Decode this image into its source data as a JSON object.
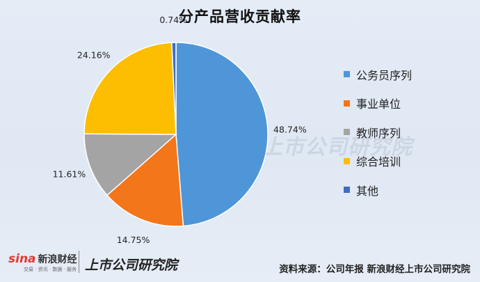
{
  "title": "分产品营收贡献率",
  "chart_data": {
    "type": "pie",
    "title": "分产品营收贡献率",
    "slices": [
      {
        "label": "公务员序列",
        "value": 48.74,
        "value_label": "48.74%",
        "color": "#4e96d8"
      },
      {
        "label": "事业单位",
        "value": 14.75,
        "value_label": "14.75%",
        "color": "#f3761b"
      },
      {
        "label": "教师序列",
        "value": 11.61,
        "value_label": "11.61%",
        "color": "#a4a4a4"
      },
      {
        "label": "综合培训",
        "value": 24.16,
        "value_label": "24.16%",
        "color": "#fdbd00"
      },
      {
        "label": "其他",
        "value": 0.74,
        "value_label": "0.74%",
        "color": "#3d6cc4"
      }
    ],
    "legend_position": "right",
    "start_angle": "top",
    "direction": "clockwise"
  },
  "watermark": "上市公司研究院",
  "footer": {
    "logo_mark": "sina",
    "logo_text": "新浪财经",
    "logo_sub": "交易 · 资讯 · 数据 · 服务",
    "brand": "上市公司研究院",
    "source": "资料来源：公司年报  新浪财经上市公司研究院"
  }
}
